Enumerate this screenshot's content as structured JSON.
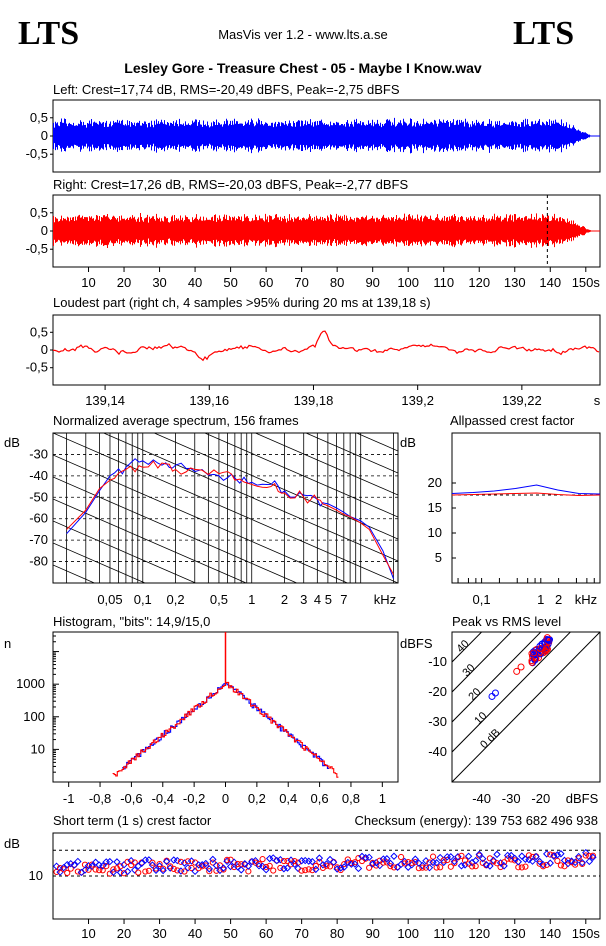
{
  "header": {
    "logo_left": "LTS",
    "logo_right": "LTS",
    "app": "MasVis ver 1.2 - www.lts.a.se",
    "file_title": "Lesley Gore - Treasure Chest - 05 - Maybe I Know.wav"
  },
  "colors": {
    "left": "#0000ff",
    "right": "#ff0000",
    "grid": "#000000"
  },
  "chart_data": [
    {
      "id": "left_wave",
      "type": "area",
      "title": "Left: Crest=17,74 dB, RMS=-20,49 dBFS, Peak=-2,75 dBFS",
      "yticks": [
        "0,5",
        "0",
        "-0,5"
      ],
      "ylim": [
        -1,
        1
      ],
      "xlim": [
        0,
        154
      ],
      "envelope_peak": 0.55,
      "series": [
        {
          "values": "left channel waveform"
        }
      ]
    },
    {
      "id": "right_wave",
      "type": "area",
      "title": "Right: Crest=17,26 dB, RMS=-20,03 dBFS, Peak=-2,77 dBFS",
      "yticks": [
        "0,5",
        "0",
        "-0,5"
      ],
      "ylim": [
        -1,
        1
      ],
      "xlim": [
        0,
        154
      ],
      "xticks": [
        "10",
        "20",
        "30",
        "40",
        "50",
        "60",
        "70",
        "80",
        "90",
        "100",
        "110",
        "120",
        "130",
        "140",
        "150s"
      ],
      "marker_x": 139.18,
      "envelope_peak": 0.55
    },
    {
      "id": "loudest",
      "type": "line",
      "title": "Loudest part (right ch, 4 samples >95% during 20 ms at 139,18 s)",
      "yticks": [
        "0,5",
        "0",
        "-0,5"
      ],
      "ylim": [
        -1,
        1
      ],
      "xlim": [
        139.13,
        139.235
      ],
      "xticks": [
        "139,14",
        "139,16",
        "139,18",
        "139,2",
        "139,22",
        "s"
      ]
    },
    {
      "id": "spectrum",
      "type": "line",
      "title": "Normalized average spectrum, 156 frames",
      "ylabel": "dB",
      "yticks": [
        "-30",
        "-40",
        "-50",
        "-60",
        "-70",
        "-80"
      ],
      "xticks": [
        "0,05",
        "0,1",
        "0,2",
        "0,5",
        "1",
        "2",
        "3",
        "4 5",
        "7",
        "kHz"
      ],
      "ylim": [
        -90,
        -20
      ],
      "x_khz": [
        0.02,
        0.03,
        0.04,
        0.05,
        0.07,
        0.1,
        0.15,
        0.2,
        0.3,
        0.5,
        0.7,
        1,
        1.5,
        2,
        3,
        4,
        5,
        6,
        7,
        8,
        10,
        12,
        16,
        20
      ],
      "series": [
        {
          "values": [
            -67,
            -57,
            -47,
            -40,
            -36,
            -33,
            -35,
            -35,
            -38,
            -40,
            -41,
            -43,
            -44,
            -47,
            -49,
            -51,
            -53,
            -55,
            -57,
            -59,
            -61,
            -64,
            -75,
            -88
          ]
        },
        {
          "values": [
            -65,
            -56,
            -46,
            -42,
            -37,
            -36,
            -34,
            -37,
            -37,
            -39,
            -42,
            -44,
            -45,
            -48,
            -50,
            -51,
            -54,
            -56,
            -58,
            -59,
            -62,
            -65,
            -77,
            -86
          ]
        }
      ]
    },
    {
      "id": "allpass",
      "type": "line",
      "title": "Allpassed crest factor",
      "ylabel": "dB",
      "yticks": [
        "20",
        "15",
        "10",
        "5"
      ],
      "ylim": [
        0,
        30
      ],
      "xticks": [
        "0,1",
        "1",
        "2",
        "kHz"
      ],
      "series": [
        {
          "values": [
            17.9,
            18.1,
            18.4,
            18.9,
            19.6,
            18.6,
            17.9,
            17.8
          ]
        },
        {
          "values": [
            17.6,
            17.7,
            17.8,
            17.9,
            18.0,
            17.7,
            17.5,
            17.6
          ]
        }
      ],
      "reference": 17.6
    },
    {
      "id": "histogram",
      "type": "line",
      "title": "Histogram, \"bits\": 14,9/15,0",
      "ylabel": "n",
      "yticks": [
        "1000",
        "100",
        "10"
      ],
      "xticks": [
        "-1",
        "-0,8",
        "-0,6",
        "-0,4",
        "-0,2",
        "0",
        "0,2",
        "0,4",
        "0,6",
        "0,8",
        "1"
      ],
      "xlim": [
        -1.1,
        1.1
      ],
      "peak_count": 1100
    },
    {
      "id": "peak_rms",
      "type": "scatter",
      "title": "Peak vs RMS level",
      "ylabel": "dBFS",
      "yticks": [
        "-10",
        "-20",
        "-30",
        "-40"
      ],
      "xticks": [
        "-40",
        "-30",
        "-20",
        "dBFS"
      ],
      "diag_labels": [
        "40",
        "30",
        "20",
        "10",
        "0 dB"
      ],
      "xlim": [
        -50,
        0
      ],
      "ylim": [
        -50,
        0
      ]
    },
    {
      "id": "short_crest",
      "type": "scatter",
      "title": "Short term (1 s) crest factor",
      "checksum": "Checksum (energy):   139 753 682 496 938",
      "ylabel": "dB",
      "yticks": [
        "10"
      ],
      "xticks": [
        "10",
        "20",
        "30",
        "40",
        "50",
        "60",
        "70",
        "80",
        "90",
        "100",
        "110",
        "120",
        "130",
        "140",
        "150s"
      ],
      "ylim": [
        0,
        20
      ],
      "xlim": [
        0,
        154
      ]
    }
  ]
}
